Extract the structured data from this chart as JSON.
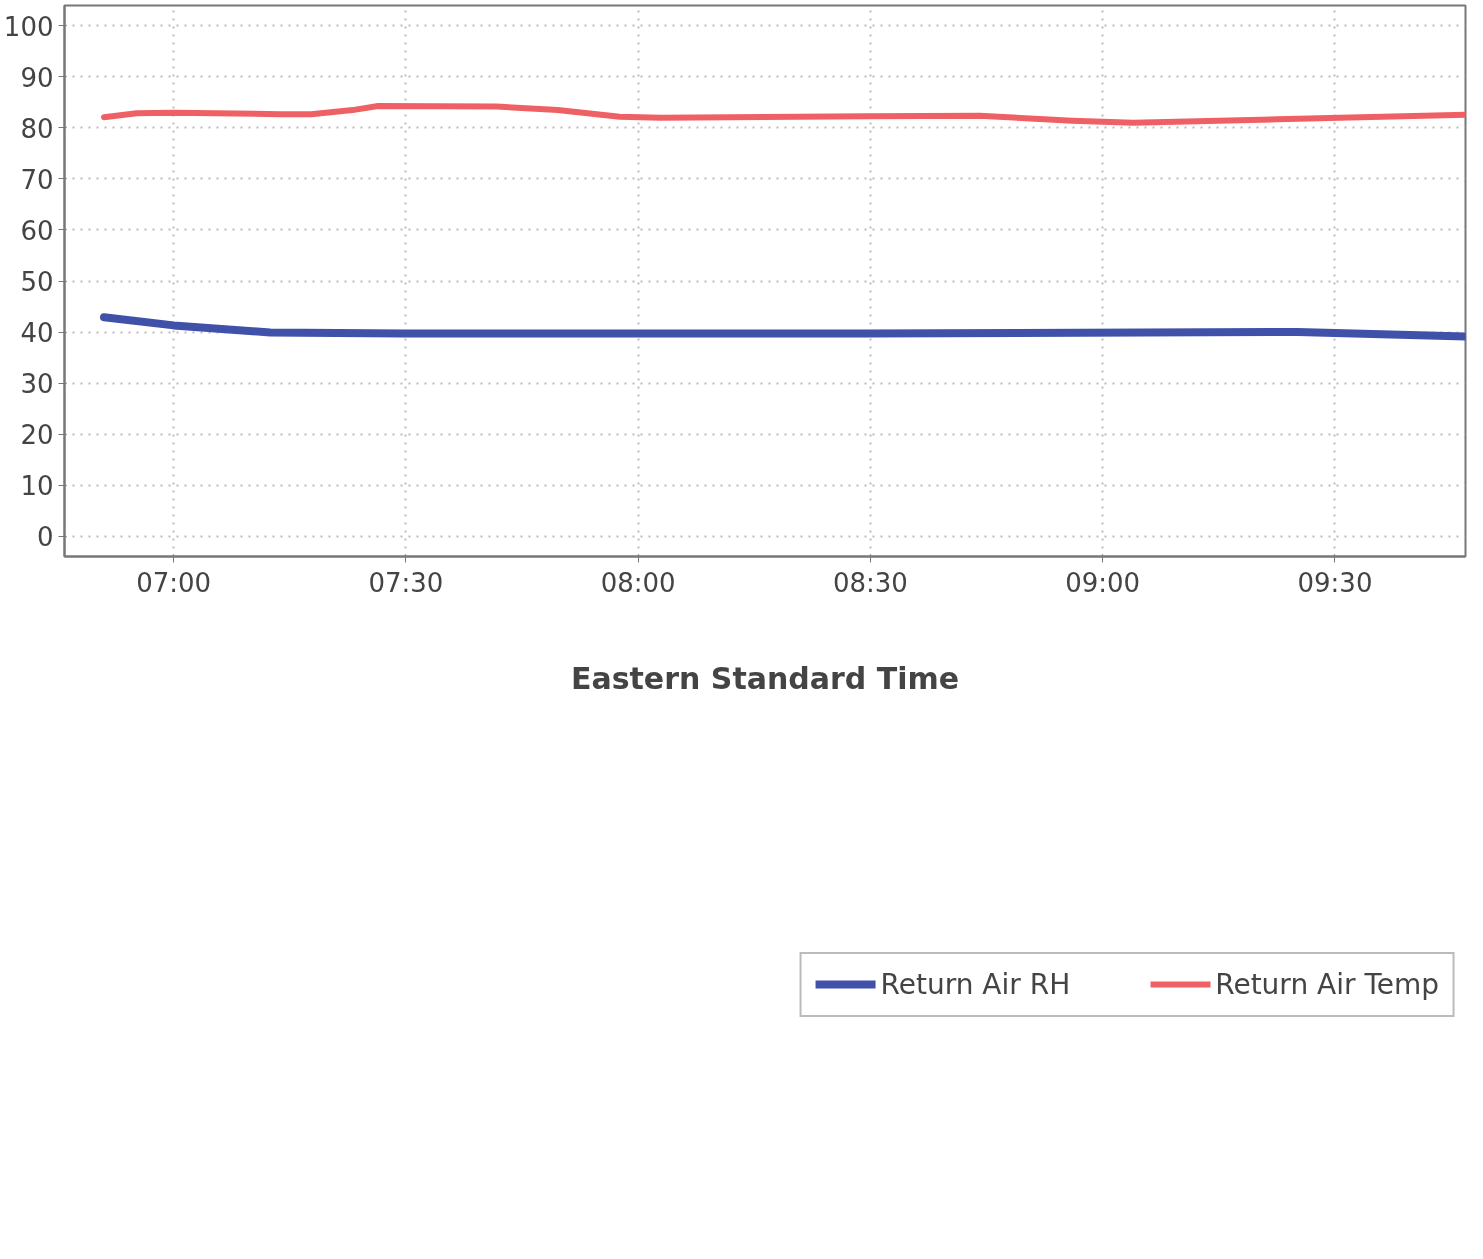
{
  "chart_data": {
    "type": "line",
    "xlabel": "Eastern Standard Time",
    "xlim": [
      6.765,
      9.781
    ],
    "ylim": [
      -4,
      104
    ],
    "xticks": [
      {
        "value": 7,
        "label": "07:00"
      },
      {
        "value": 7.5,
        "label": "07:30"
      },
      {
        "value": 8,
        "label": "08:00"
      },
      {
        "value": 8.5,
        "label": "08:30"
      },
      {
        "value": 9,
        "label": "09:00"
      },
      {
        "value": 9.5,
        "label": "09:30"
      }
    ],
    "yticks": [
      0,
      10,
      20,
      30,
      40,
      50,
      60,
      70,
      80,
      90,
      100
    ],
    "grid": true,
    "legend": "bottom",
    "line_style": "solid",
    "marker": "none",
    "series": [
      {
        "name": "Return Air RH",
        "color": "#3f51a8",
        "x": [
          6.85,
          7.0,
          7.208,
          7.496,
          8.491,
          9.42,
          9.781
        ],
        "values": [
          42.9,
          41.3,
          39.9,
          39.7,
          39.7,
          40.0,
          39.1
        ]
      },
      {
        "name": "Return Air Temp",
        "color": "#ef6065",
        "x": [
          6.85,
          6.92,
          7.0,
          7.23,
          7.296,
          7.385,
          7.44,
          7.695,
          7.827,
          7.96,
          8.049,
          8.491,
          8.735,
          8.934,
          9.066,
          9.376,
          9.781
        ],
        "values": [
          82.1,
          82.9,
          83.0,
          82.7,
          82.7,
          83.5,
          84.3,
          84.2,
          83.5,
          82.2,
          82.0,
          82.3,
          82.4,
          81.4,
          81.0,
          81.7,
          82.6
        ]
      }
    ]
  }
}
